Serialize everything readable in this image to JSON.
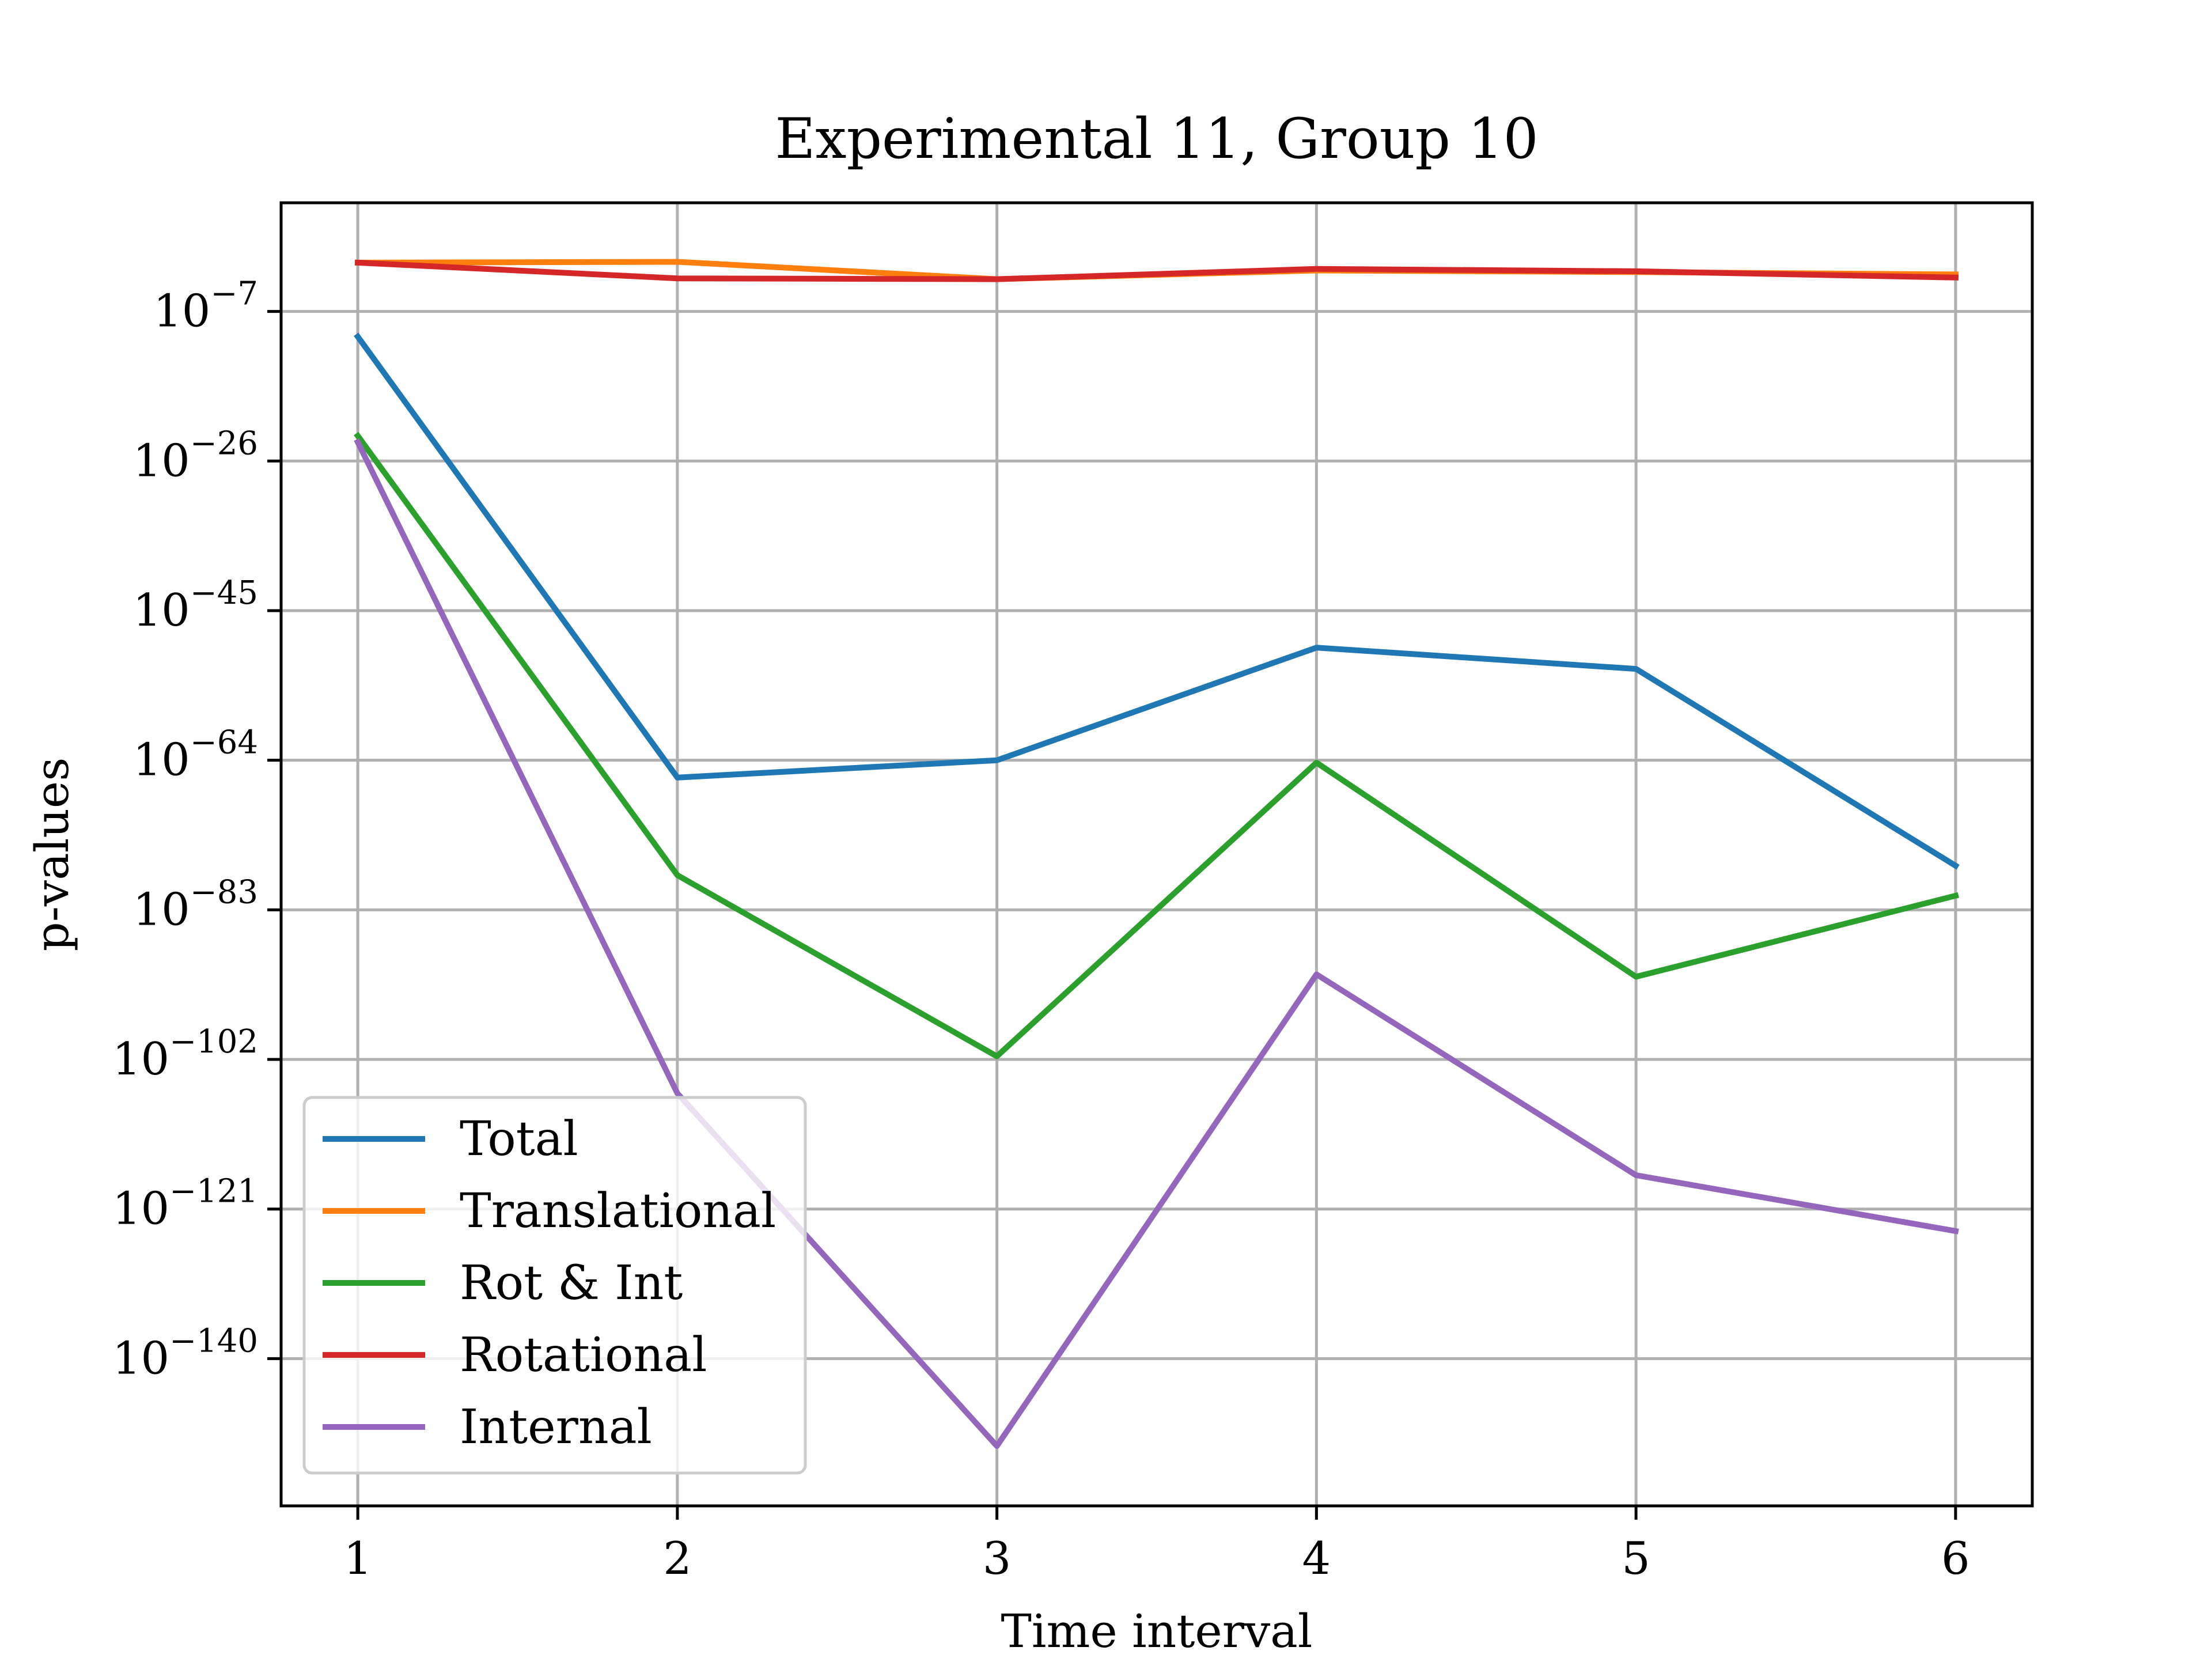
{
  "chart_data": {
    "type": "line",
    "title": "Experimental 11, Group 10",
    "xlabel": "Time interval",
    "ylabel": "p-values",
    "yscale": "log",
    "x": [
      1,
      2,
      3,
      4,
      5,
      6
    ],
    "xticks": [
      "1",
      "2",
      "3",
      "4",
      "5",
      "6"
    ],
    "xlim": [
      0.76,
      6.24
    ],
    "yticks": [
      {
        "base": "10",
        "exp": "−7",
        "value": -7
      },
      {
        "base": "10",
        "exp": "−26",
        "value": -26
      },
      {
        "base": "10",
        "exp": "−45",
        "value": -45
      },
      {
        "base": "10",
        "exp": "−64",
        "value": -64
      },
      {
        "base": "10",
        "exp": "−83",
        "value": -83
      },
      {
        "base": "10",
        "exp": "−102",
        "value": -102
      },
      {
        "base": "10",
        "exp": "−121",
        "value": -121
      },
      {
        "base": "10",
        "exp": "−140",
        "value": -140
      }
    ],
    "ylim_log10": [
      -158.7,
      6.8
    ],
    "grid": true,
    "legend_position": "lower-left",
    "series": [
      {
        "name": "Total",
        "color": "#1f77b4",
        "log10_values": [
          -10.2,
          -66.2,
          -64,
          -49.7,
          -52.4,
          -77.4
        ]
      },
      {
        "name": "Translational",
        "color": "#ff7f0e",
        "log10_values": [
          -0.8,
          -0.7,
          -2.9,
          -1.8,
          -2.0,
          -2.3
        ]
      },
      {
        "name": "Rot & Int",
        "color": "#2ca02c",
        "log10_values": [
          -22.8,
          -78.6,
          -101.6,
          -64.3,
          -91.5,
          -81.2
        ]
      },
      {
        "name": "Rotational",
        "color": "#d62728",
        "log10_values": [
          -0.8,
          -2.8,
          -2.9,
          -1.6,
          -1.9,
          -2.7
        ]
      },
      {
        "name": "Internal",
        "color": "#9467bd",
        "log10_values": [
          -23.6,
          -106.3,
          -151.1,
          -91.2,
          -116.7,
          -123.8
        ]
      }
    ]
  }
}
